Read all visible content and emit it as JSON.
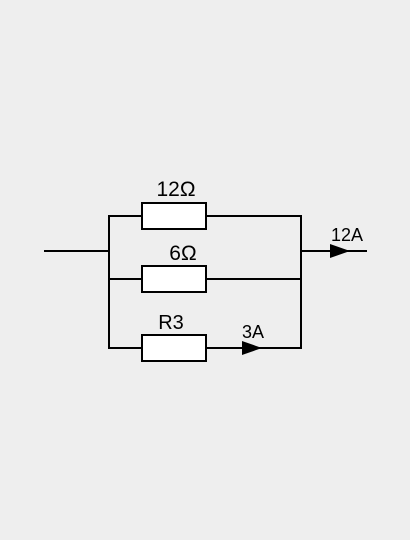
{
  "circuit": {
    "branches": [
      {
        "resistor_label": "12Ω"
      },
      {
        "resistor_label": "6Ω"
      },
      {
        "resistor_label": "R3",
        "current_label": "3A"
      }
    ],
    "total_current_label": "12A"
  }
}
